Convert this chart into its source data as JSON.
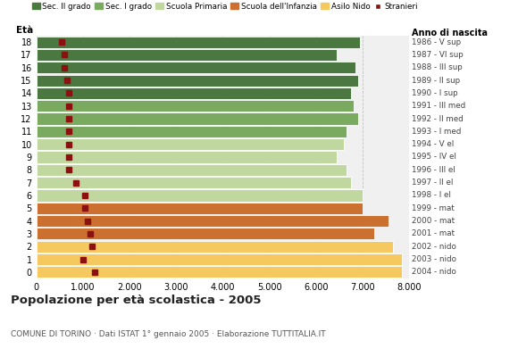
{
  "ages": [
    18,
    17,
    16,
    15,
    14,
    13,
    12,
    11,
    10,
    9,
    8,
    7,
    6,
    5,
    4,
    3,
    2,
    1,
    0
  ],
  "years": [
    "1986 - V sup",
    "1987 - VI sup",
    "1988 - III sup",
    "1989 - II sup",
    "1990 - I sup",
    "1991 - III med",
    "1992 - II med",
    "1993 - I med",
    "1994 - V el",
    "1995 - IV el",
    "1996 - III el",
    "1997 - II el",
    "1998 - I el",
    "1999 - mat",
    "2000 - mat",
    "2001 - mat",
    "2002 - nido",
    "2003 - nido",
    "2004 - nido"
  ],
  "bar_values": [
    6950,
    6450,
    6850,
    6900,
    6750,
    6800,
    6900,
    6650,
    6600,
    6450,
    6650,
    6750,
    7000,
    7000,
    7550,
    7250,
    7650,
    7850,
    7850
  ],
  "stranieri": [
    550,
    600,
    600,
    650,
    700,
    700,
    700,
    700,
    700,
    700,
    700,
    850,
    1050,
    1050,
    1100,
    1150,
    1200,
    1000,
    1250
  ],
  "bar_colors_by_age": {
    "18": "#4a7840",
    "17": "#4a7840",
    "16": "#4a7840",
    "15": "#4a7840",
    "14": "#4a7840",
    "13": "#7aaa60",
    "12": "#7aaa60",
    "11": "#7aaa60",
    "10": "#c0d8a0",
    "9": "#c0d8a0",
    "8": "#c0d8a0",
    "7": "#c0d8a0",
    "6": "#c0d8a0",
    "5": "#cc7030",
    "4": "#cc7030",
    "3": "#cc7030",
    "2": "#f5c860",
    "1": "#f5c860",
    "0": "#f5c860"
  },
  "stranieri_color": "#8b1010",
  "title": "Popolazione per età scolastica - 2005",
  "subtitle": "COMUNE DI TORINO · Dati ISTAT 1° gennaio 2005 · Elaborazione TUTTITALIA.IT",
  "xlim": [
    0,
    8000
  ],
  "xticks": [
    0,
    1000,
    2000,
    3000,
    4000,
    5000,
    6000,
    7000,
    8000
  ],
  "xlabel_eta": "Età",
  "xlabel_anno": "Anno di nascita",
  "legend_labels": [
    "Sec. II grado",
    "Sec. I grado",
    "Scuola Primaria",
    "Scuola dell'Infanzia",
    "Asilo Nido",
    "Stranieri"
  ],
  "legend_colors": [
    "#4a7840",
    "#7aaa60",
    "#c0d8a0",
    "#cc7030",
    "#f5c860",
    "#8b1010"
  ],
  "background_color": "#f0f0f0",
  "grid_color": "#bbbbbb"
}
